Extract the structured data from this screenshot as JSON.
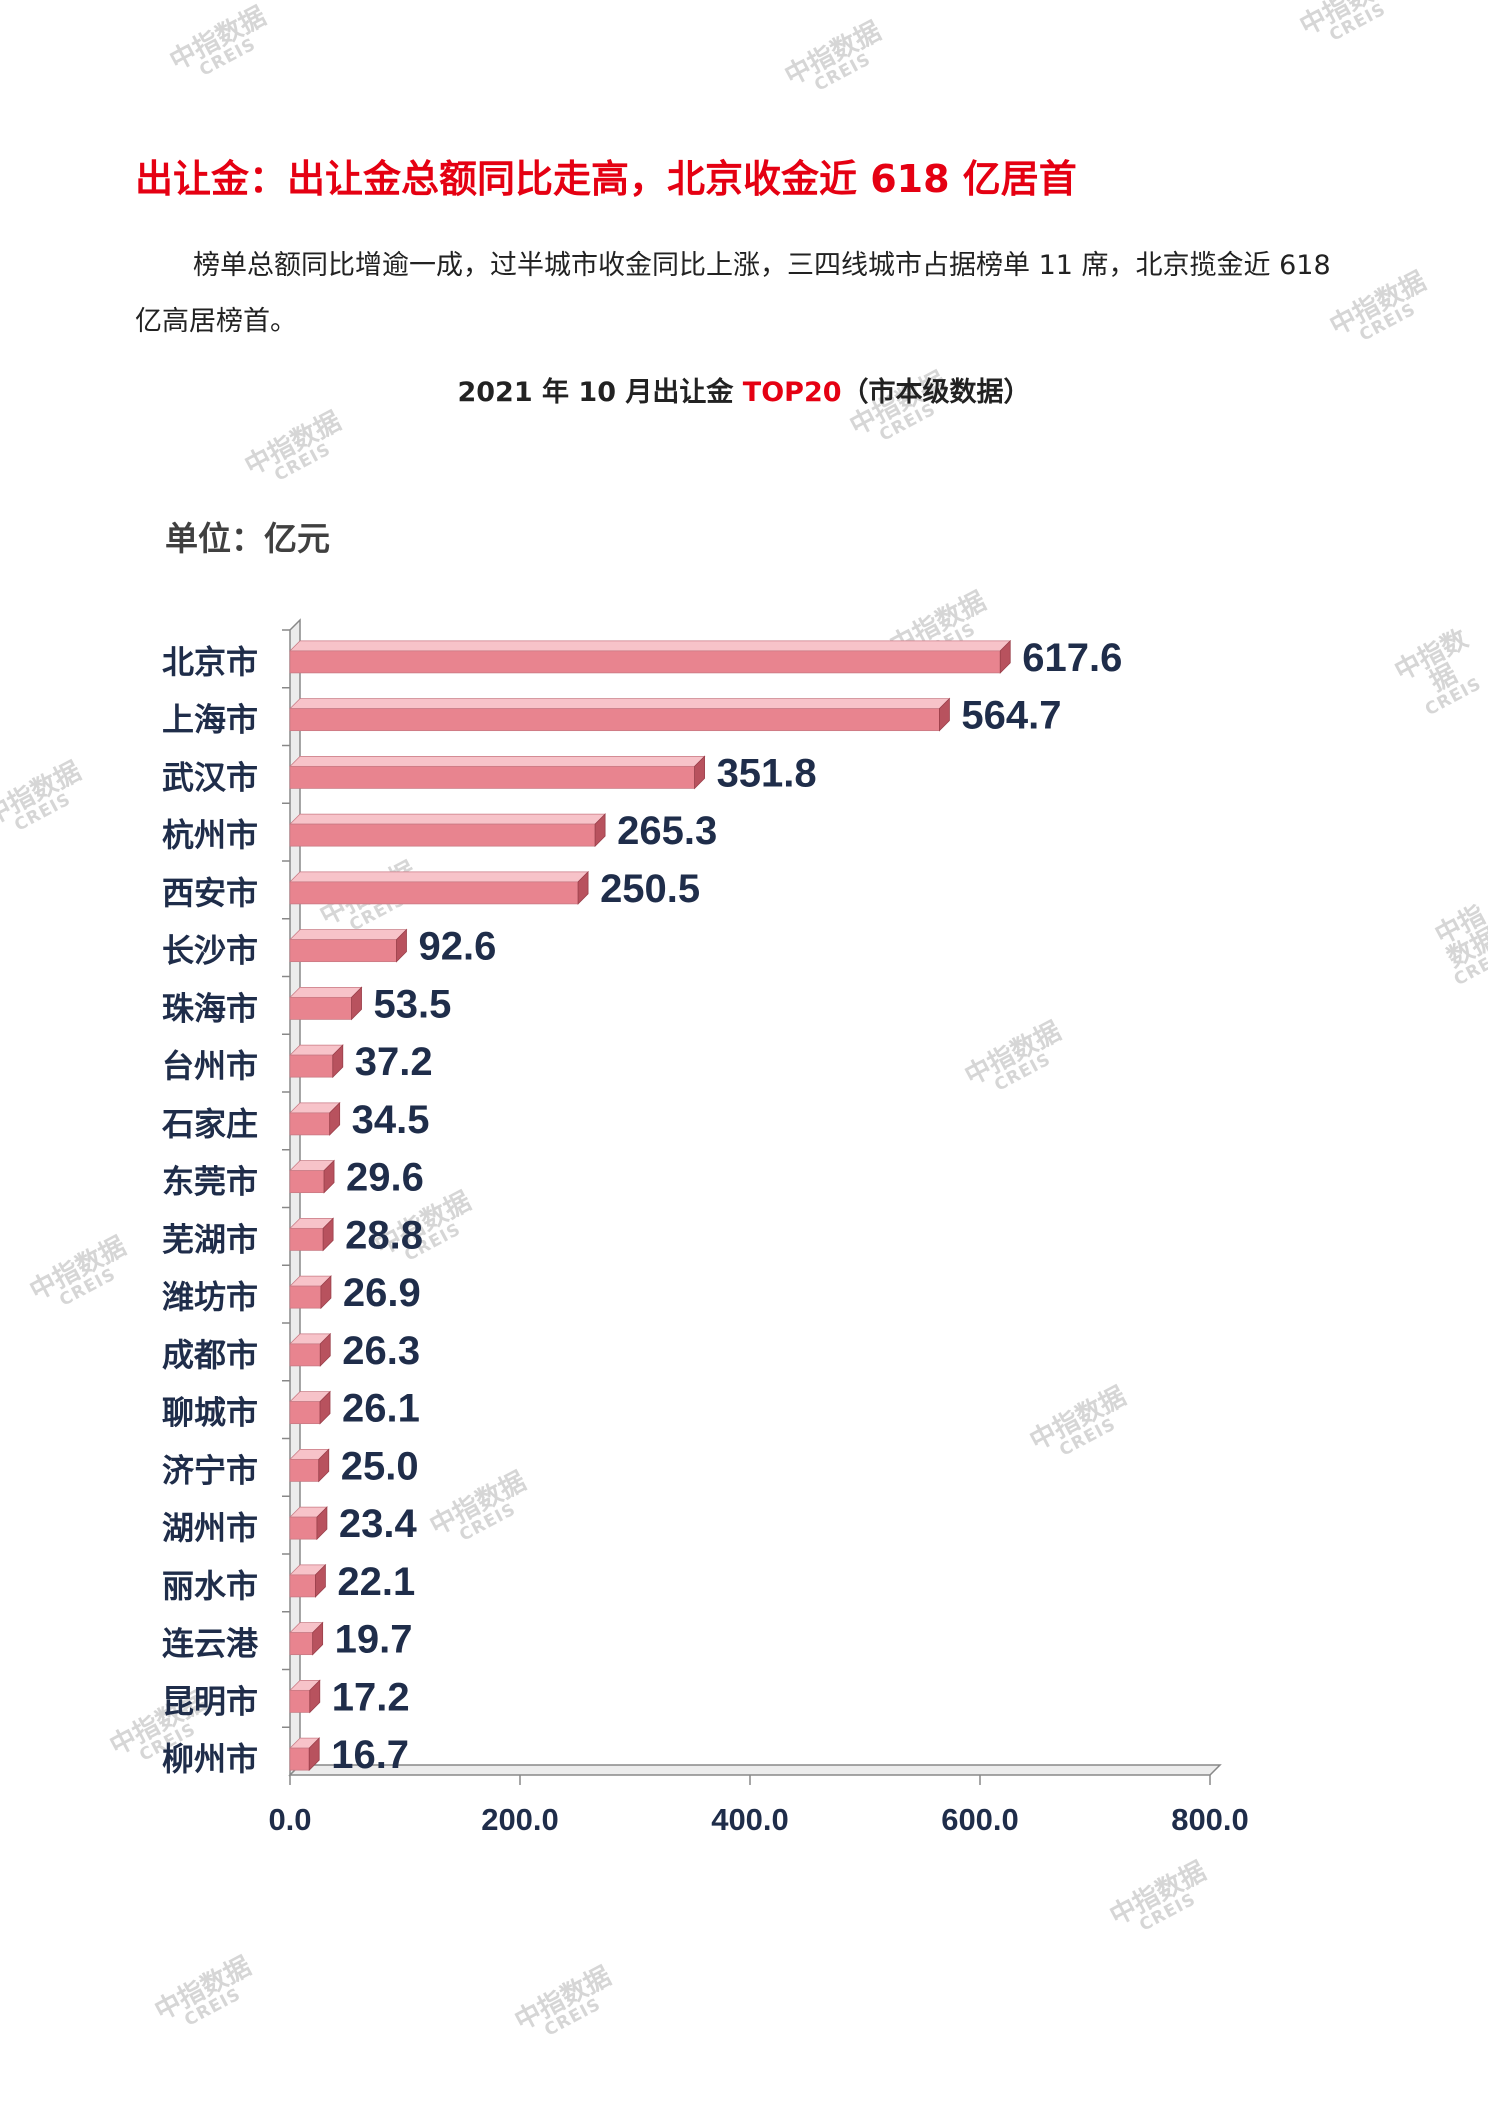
{
  "watermark": {
    "cn": "中指数据",
    "en": "CREIS"
  },
  "section_title": "出让金：出让金总额同比走高，北京收金近 618 亿居首",
  "paragraph": "榜单总额同比增逾一成，过半城市收金同比上涨，三四线城市占据榜单 11 席，北京揽金近 618 亿高居榜首。",
  "chart_title": {
    "prefix": "2021 年 10 月出让金 ",
    "accent": "TOP20",
    "suffix": "（市本级数据）"
  },
  "unit_label": "单位：亿元",
  "colors": {
    "bar_front": "#e8848f",
    "bar_top": "#f7c3c9",
    "bar_side": "#b8525e",
    "axis": "#888888",
    "text": "#1f2d4a",
    "accent": "#e50012"
  },
  "chart_data": {
    "type": "bar",
    "orientation": "horizontal",
    "categories": [
      "北京市",
      "上海市",
      "武汉市",
      "杭州市",
      "西安市",
      "长沙市",
      "珠海市",
      "台州市",
      "石家庄",
      "东莞市",
      "芜湖市",
      "潍坊市",
      "成都市",
      "聊城市",
      "济宁市",
      "湖州市",
      "丽水市",
      "连云港",
      "昆明市",
      "柳州市"
    ],
    "values": [
      617.6,
      564.7,
      351.8,
      265.3,
      250.5,
      92.6,
      53.5,
      37.2,
      34.5,
      29.6,
      28.8,
      26.9,
      26.3,
      26.1,
      25.0,
      23.4,
      22.1,
      19.7,
      17.2,
      16.7
    ],
    "value_labels": [
      "617.6",
      "564.7",
      "351.8",
      "265.3",
      "250.5",
      "92.6",
      "53.5",
      "37.2",
      "34.5",
      "29.6",
      "28.8",
      "26.9",
      "26.3",
      "26.1",
      "25.0",
      "23.4",
      "22.1",
      "19.7",
      "17.2",
      "16.7"
    ],
    "xlim": [
      0,
      800
    ],
    "xticks": [
      0,
      200,
      400,
      600,
      800
    ],
    "xtick_labels": [
      "0.0",
      "200.0",
      "400.0",
      "600.0",
      "800.0"
    ],
    "style": "3d"
  }
}
